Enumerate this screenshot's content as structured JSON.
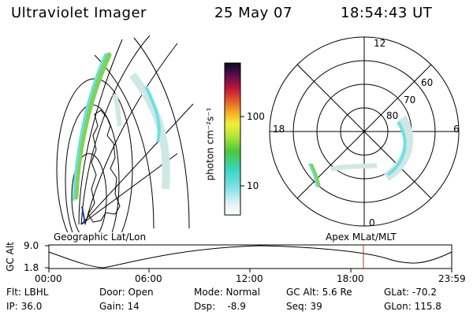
{
  "header": {
    "instrument": "Ultraviolet Imager",
    "date": "25 May 07",
    "time": "18:54:43 UT"
  },
  "colorbar": {
    "label": "photon cm⁻²s⁻¹",
    "ticks": [
      "100",
      "10"
    ]
  },
  "polar": {
    "mlt_labels": {
      "top": "12",
      "left": "18",
      "right": "6",
      "bottom": "0"
    },
    "lat_labels": [
      "60",
      "70",
      "80"
    ]
  },
  "panels": {
    "left_caption": "Geographic Lat/Lon",
    "right_caption": "Apex MLat/MLT"
  },
  "altitude_plot": {
    "ylabel": "GC Alt",
    "yticks": [
      "9.0",
      "1.8"
    ],
    "xticks": [
      "00:00",
      "06:00",
      "12:00",
      "18:00",
      "23:59"
    ]
  },
  "status": {
    "row1": {
      "flt": "Flt: LBHL",
      "door": "Door: Open",
      "mode": "Mode: Normal",
      "gc_alt": "GC Alt: 5.6 Re",
      "glat": "GLat: -70.2"
    },
    "row2": {
      "ip": "IP: 36.0",
      "gain": "Gain: 14",
      "dsp": "Dsp:    -8.9",
      "seq": "Seq: 39",
      "glon": "GLon: 115.8"
    }
  },
  "colors": {
    "marker": "#c0392b",
    "aurora_green": "#7fd35a",
    "aurora_cyan": "#6ee0e4",
    "aurora_pale": "#cfe8e4"
  }
}
